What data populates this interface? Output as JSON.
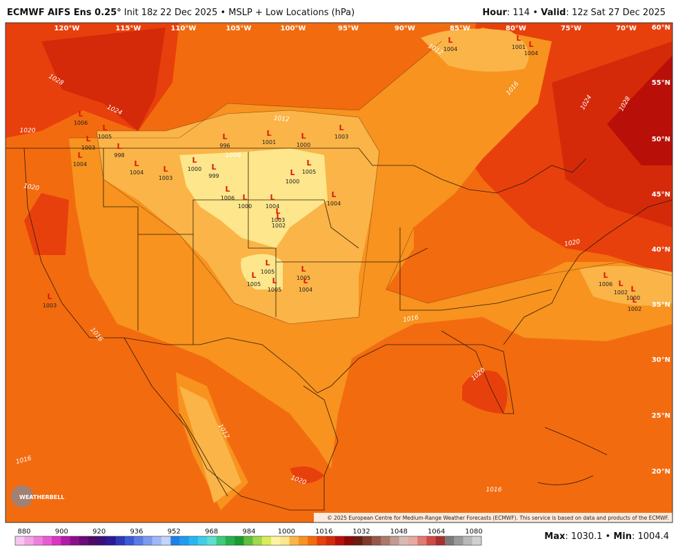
{
  "header": {
    "model": "ECMWF AIFS Ens 0.25°",
    "subtitle": "Init 18z 22 Dec 2025 • MSLP + Low Locations (hPa)",
    "right": [
      "Hour",
      ": 114 • ",
      "Valid",
      ": 12z Sat 27 Dec 2025"
    ]
  },
  "map": {
    "longitudes": [
      "120°W",
      "115°W",
      "110°W",
      "105°W",
      "100°W",
      "95°W",
      "90°W",
      "85°W",
      "80°W",
      "75°W",
      "70°W"
    ],
    "latitudes": [
      "60°N",
      "55°N",
      "50°N",
      "45°N",
      "40°N",
      "35°N",
      "30°N",
      "25°N",
      "20°N"
    ],
    "contour_labels": [
      "1028",
      "1024",
      "1020",
      "1020",
      "1016",
      "1016",
      "1012",
      "1020",
      "1016",
      "1020",
      "1016",
      "1020",
      "1016",
      "1024",
      "1028",
      "1012",
      "1012",
      "1008"
    ],
    "low_symbol": "L",
    "lows": [
      "1004",
      "1001",
      "1004",
      "1006",
      "1003",
      "1005",
      "998",
      "1004",
      "1004",
      "996",
      "1001",
      "1000",
      "1003",
      "1005",
      "1000",
      "1003",
      "999",
      "1006",
      "1000",
      "1004",
      "1003",
      "1002",
      "1000",
      "1004",
      "1005",
      "1005",
      "1005",
      "1005",
      "1004",
      "1003",
      "1006",
      "1002",
      "1000",
      "1002"
    ],
    "copyright": "© 2025 European Centre for Medium-Range Weather Forecasts (ECMWF). This service is based on data and products of the ECMWF.",
    "logo": "WEATHERBELL"
  },
  "colorbar": {
    "labels": [
      "880",
      "900",
      "920",
      "936",
      "952",
      "968",
      "984",
      "1000",
      "1016",
      "1032",
      "1048",
      "1064",
      "1080"
    ],
    "colors": [
      "#f7c6ef",
      "#f3a3e6",
      "#ee7fdc",
      "#e85bd2",
      "#d936c4",
      "#b31aa8",
      "#8a0f8c",
      "#6b0a78",
      "#4d0a66",
      "#3a0f7a",
      "#2a1a99",
      "#2c3ab8",
      "#3a5bd6",
      "#5a7be6",
      "#7b9bf0",
      "#a0b8f7",
      "#c4d3fb",
      "#1e7fe6",
      "#1f9bf0",
      "#28b6f2",
      "#3fcde8",
      "#5ce0d0",
      "#3fca7a",
      "#27b04a",
      "#1c9a2e",
      "#5fbf3a",
      "#9fd84a",
      "#d8ec5a",
      "#fff3a0",
      "#fde68b",
      "#fbb447",
      "#f7931e",
      "#f36b0f",
      "#e8400c",
      "#d42a0a",
      "#b81008",
      "#8a0a06",
      "#6b1c10",
      "#7f3a2a",
      "#95584a",
      "#ab786c",
      "#c19a90",
      "#d6bab3",
      "#e8a8a0",
      "#e07a72",
      "#d04a44",
      "#a8302e",
      "#7a7a7a",
      "#999999",
      "#b8b8b8",
      "#d0d0d0"
    ]
  },
  "stats": [
    "Max",
    ": 1030.1 • ",
    "Min",
    ": 1004.4"
  ]
}
